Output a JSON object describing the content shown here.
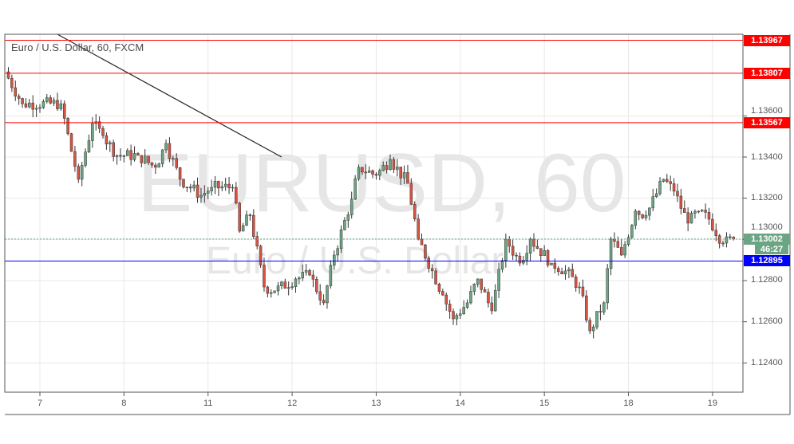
{
  "chart_data": {
    "type": "candlestick",
    "title": "Euro / U.S. Dollar, 60, FXCM",
    "watermark": "EURUSD, 60",
    "watermark_sub": "Euro / U.S. Dollar",
    "x_ticks": [
      "7",
      "8",
      "11",
      "12",
      "13",
      "14",
      "15",
      "18",
      "19"
    ],
    "y_ticks": [
      "1.12400",
      "1.12600",
      "1.12800",
      "1.13000",
      "1.13200",
      "1.13400",
      "1.13600"
    ],
    "y_tick_values": [
      1.124,
      1.126,
      1.128,
      1.13,
      1.132,
      1.134,
      1.136
    ],
    "ylim": [
      1.1226,
      1.1404
    ],
    "grid": true,
    "horizontal_lines": [
      {
        "price": 1.13967,
        "label": "1.13967",
        "color": "#ff0000"
      },
      {
        "price": 1.13807,
        "label": "1.13807",
        "color": "#ff0000"
      },
      {
        "price": 1.13567,
        "label": "1.13567",
        "color": "#ff0000"
      },
      {
        "price": 1.12895,
        "label": "1.12895",
        "color": "#0000ff"
      }
    ],
    "last_price": {
      "price": 1.13002,
      "label": "1.13002",
      "countdown": "46:27",
      "color": "#6ba583"
    },
    "trend_line": {
      "from": {
        "day": "7",
        "hour": 5,
        "price": 1.13996
      },
      "to": {
        "day": "11",
        "hour": 21,
        "price": 1.134
      }
    },
    "colors": {
      "up": "#6ba583",
      "down": "#d75442"
    },
    "days": [
      "6",
      "7",
      "8",
      "11",
      "12",
      "13",
      "14",
      "15",
      "18",
      "19"
    ],
    "closes": [
      [
        "6",
        14,
        1.13814
      ],
      [
        "6",
        19,
        1.13659
      ],
      [
        "7",
        6,
        1.13659
      ],
      [
        "7",
        9,
        1.13427
      ],
      [
        "7",
        11,
        1.13292
      ],
      [
        "7",
        15,
        1.13563
      ],
      [
        "7",
        18,
        1.13504
      ],
      [
        "7",
        22,
        1.13408
      ],
      [
        "8",
        4,
        1.13408
      ],
      [
        "8",
        9,
        1.1335
      ],
      [
        "8",
        12,
        1.13466
      ],
      [
        "8",
        16,
        1.13292
      ],
      [
        "8",
        22,
        1.13214
      ],
      [
        "11",
        1,
        1.13253
      ],
      [
        "11",
        7,
        1.13253
      ],
      [
        "11",
        9,
        1.1304
      ],
      [
        "11",
        12,
        1.13117
      ],
      [
        "11",
        16,
        1.12769
      ],
      [
        "11",
        19,
        1.1275
      ],
      [
        "12",
        1,
        1.12808
      ],
      [
        "12",
        5,
        1.12827
      ],
      [
        "12",
        9,
        1.12692
      ],
      [
        "12",
        12,
        1.12924
      ],
      [
        "12",
        17,
        1.13195
      ],
      [
        "12",
        19,
        1.1335
      ],
      [
        "13",
        0,
        1.13311
      ],
      [
        "13",
        4,
        1.13388
      ],
      [
        "13",
        9,
        1.13272
      ],
      [
        "13",
        12,
        1.13001
      ],
      [
        "13",
        16,
        1.12847
      ],
      [
        "13",
        19,
        1.1273
      ],
      [
        "13",
        22,
        1.12614
      ],
      [
        "14",
        2,
        1.12692
      ],
      [
        "14",
        5,
        1.12808
      ],
      [
        "14",
        9,
        1.12653
      ],
      [
        "14",
        13,
        1.13001
      ],
      [
        "14",
        17,
        1.12885
      ],
      [
        "14",
        20,
        1.13001
      ],
      [
        "15",
        2,
        1.12885
      ],
      [
        "15",
        6,
        1.12847
      ],
      [
        "15",
        10,
        1.12769
      ],
      [
        "15",
        13,
        1.12556
      ],
      [
        "15",
        17,
        1.12692
      ],
      [
        "15",
        19,
        1.13001
      ],
      [
        "15",
        22,
        1.12924
      ],
      [
        "18",
        2,
        1.13137
      ],
      [
        "18",
        5,
        1.13117
      ],
      [
        "18",
        10,
        1.13292
      ],
      [
        "18",
        13,
        1.13234
      ],
      [
        "18",
        17,
        1.13079
      ],
      [
        "18",
        20,
        1.13137
      ],
      [
        "18",
        23,
        1.13098
      ],
      [
        "19",
        3,
        1.12982
      ],
      [
        "19",
        6,
        1.13002
      ]
    ]
  }
}
